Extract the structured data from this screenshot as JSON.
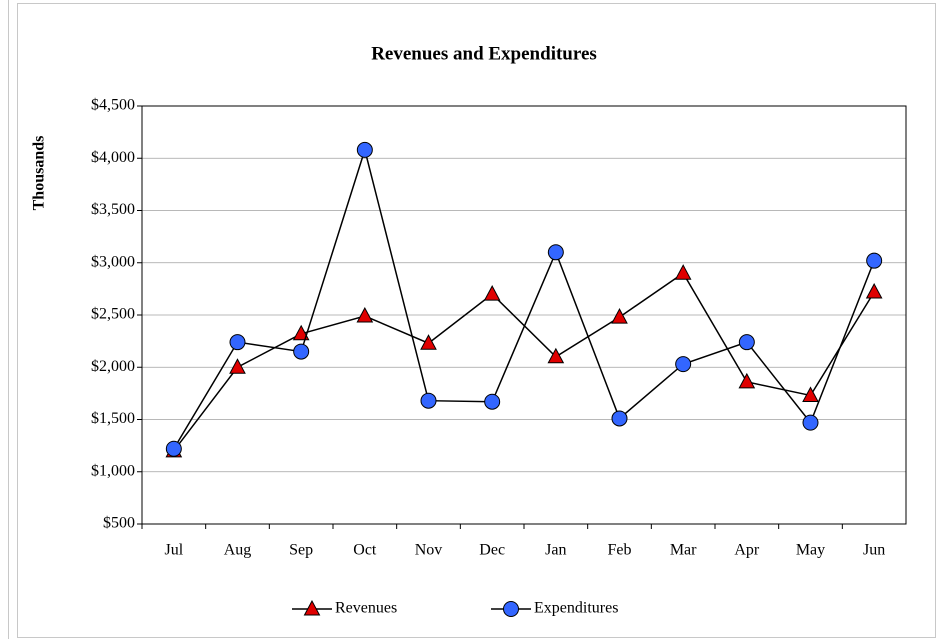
{
  "chart_data": {
    "type": "line",
    "title": "Revenues and Expenditures",
    "ylabel": "Thousands",
    "categories": [
      "Jul",
      "Aug",
      "Sep",
      "Oct",
      "Nov",
      "Dec",
      "Jan",
      "Feb",
      "Mar",
      "Apr",
      "May",
      "Jun"
    ],
    "series": [
      {
        "name": "Revenues",
        "color": "#e00000",
        "marker": "triangle",
        "values": [
          1200,
          2000,
          2320,
          2490,
          2230,
          2700,
          2100,
          2480,
          2900,
          1860,
          1730,
          2720
        ]
      },
      {
        "name": "Expenditures",
        "color": "#3366ff",
        "marker": "circle",
        "values": [
          1220,
          2240,
          2150,
          4080,
          1680,
          1670,
          3100,
          1510,
          2030,
          2240,
          1470,
          3020
        ]
      }
    ],
    "ylim": [
      500,
      4500
    ],
    "yticks": [
      {
        "value": 500,
        "label": "$500"
      },
      {
        "value": 1000,
        "label": "$1,000"
      },
      {
        "value": 1500,
        "label": "$1,500"
      },
      {
        "value": 2000,
        "label": "$2,000"
      },
      {
        "value": 2500,
        "label": "$2,500"
      },
      {
        "value": 3000,
        "label": "$3,000"
      },
      {
        "value": 3500,
        "label": "$3,500"
      },
      {
        "value": 4000,
        "label": "$4,000"
      },
      {
        "value": 4500,
        "label": "$4,500"
      }
    ],
    "grid": true,
    "legend": "bottom"
  }
}
